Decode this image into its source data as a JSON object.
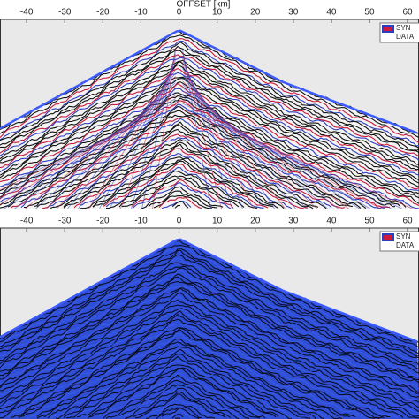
{
  "chart_data": [
    {
      "type": "seismic",
      "xlabel": "OFFSET [km]",
      "xlim": [
        -47,
        63
      ],
      "xticks": [
        -40,
        -30,
        -20,
        -10,
        0,
        10,
        20,
        30,
        40,
        50,
        60
      ],
      "series": [
        {
          "name": "SYN",
          "color": "#d01a3c"
        },
        {
          "name": "DATA",
          "color": "#2a3fbf"
        }
      ]
    },
    {
      "type": "seismic",
      "xlim": [
        -47,
        63
      ],
      "xticks": [
        -40,
        -30,
        -20,
        -10,
        0,
        10,
        20,
        30,
        40,
        50,
        60
      ],
      "series": [
        {
          "name": "SYN",
          "color": "#d01a3c"
        },
        {
          "name": "DATA",
          "color": "#2a3fbf"
        }
      ]
    }
  ]
}
